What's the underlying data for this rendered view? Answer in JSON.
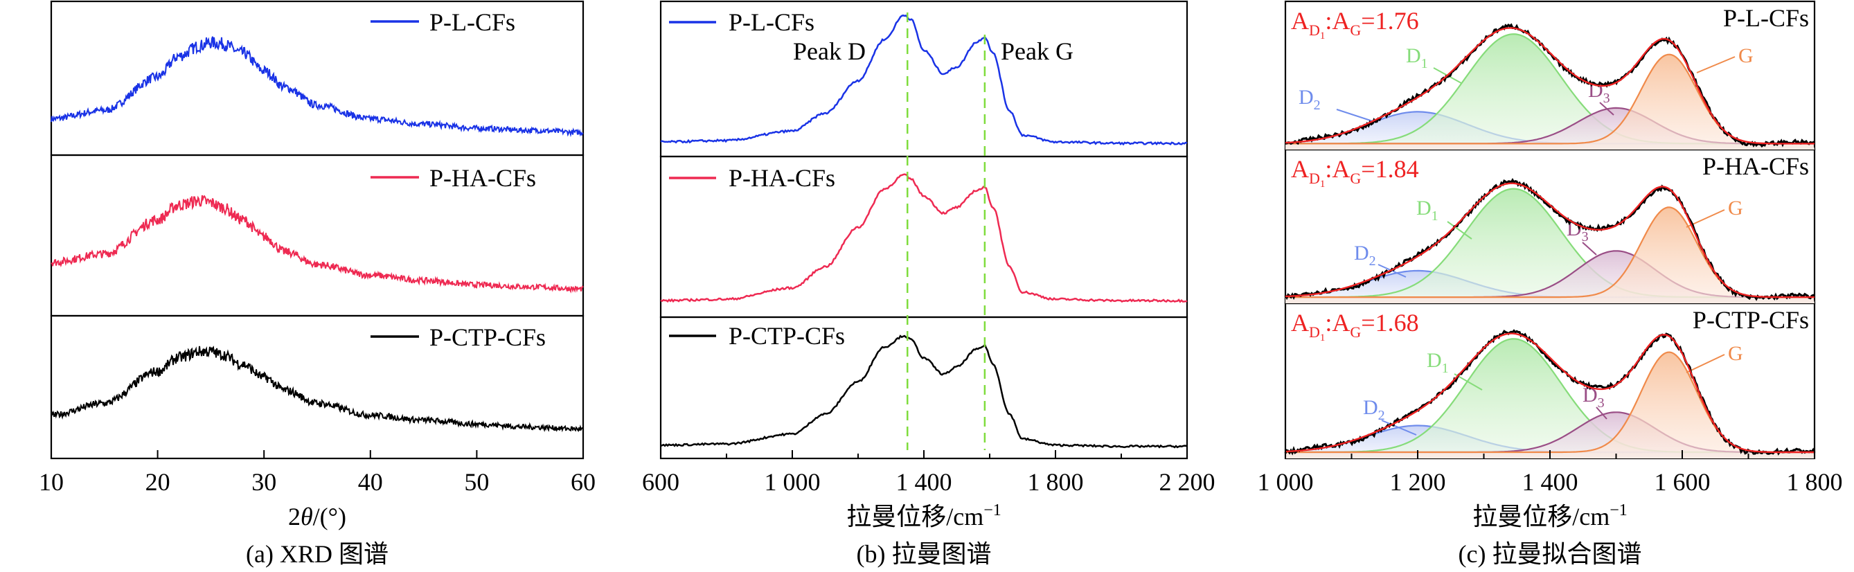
{
  "colors": {
    "blue": "#1a33e6",
    "red": "#ee2a52",
    "black": "#000000",
    "dash": "#7fdc3c",
    "fitRed": "#ee2222",
    "d1": "#86dc7a",
    "d2": "#6f8cec",
    "d3": "#9a4e86",
    "g": "#f08a4a"
  },
  "chart_data": [
    {
      "type": "line",
      "caption": "(a) XRD 图谱",
      "xlabel_prefix": "2",
      "xlabel_var": "θ",
      "xlabel_suffix": "/(°)",
      "xlim": [
        10,
        60
      ],
      "xticks": [
        "10",
        "20",
        "30",
        "40",
        "50",
        "60"
      ],
      "stacked": true,
      "series": [
        {
          "name": "P-L-CFs",
          "color_key": "blue",
          "x": [
            10,
            15,
            20,
            22,
            24,
            25,
            26,
            28,
            30,
            32,
            35,
            40,
            45,
            50,
            55,
            60
          ],
          "y": [
            0.2,
            0.28,
            0.6,
            0.8,
            0.9,
            0.93,
            0.92,
            0.83,
            0.66,
            0.5,
            0.33,
            0.2,
            0.15,
            0.11,
            0.09,
            0.07
          ]
        },
        {
          "name": "P-HA-CFs",
          "color_key": "red",
          "x": [
            10,
            15,
            20,
            22,
            24,
            25,
            26,
            28,
            30,
            32,
            35,
            40,
            45,
            50,
            55,
            60
          ],
          "y": [
            0.32,
            0.4,
            0.72,
            0.86,
            0.9,
            0.88,
            0.84,
            0.72,
            0.56,
            0.42,
            0.3,
            0.2,
            0.15,
            0.11,
            0.09,
            0.07
          ]
        },
        {
          "name": "P-CTP-CFs",
          "color_key": "black",
          "x": [
            10,
            15,
            20,
            22,
            24,
            25,
            26,
            28,
            30,
            32,
            35,
            40,
            45,
            50,
            55,
            60
          ],
          "y": [
            0.22,
            0.34,
            0.66,
            0.8,
            0.86,
            0.86,
            0.83,
            0.73,
            0.6,
            0.47,
            0.34,
            0.22,
            0.17,
            0.13,
            0.1,
            0.08
          ]
        }
      ]
    },
    {
      "type": "line",
      "caption": "(b) 拉曼图谱",
      "xlabel_text": "拉曼位移/cm",
      "xlabel_sup": "−1",
      "xlim": [
        600,
        2200
      ],
      "xticks": [
        {
          "v": 600,
          "label": "600"
        },
        {
          "v": 1000,
          "label": "1 000"
        },
        {
          "v": 1400,
          "label": "1 400"
        },
        {
          "v": 1800,
          "label": "1 800"
        },
        {
          "v": 2200,
          "label": "2 200"
        }
      ],
      "stacked": true,
      "reference_lines": [
        1350,
        1585
      ],
      "annotations": [
        "Peak D",
        "Peak G"
      ],
      "series": [
        {
          "name": "P-L-CFs",
          "color_key": "blue",
          "x": [
            600,
            800,
            1000,
            1100,
            1200,
            1280,
            1340,
            1360,
            1400,
            1460,
            1500,
            1560,
            1585,
            1610,
            1660,
            1700,
            1800,
            2000,
            2200
          ],
          "y": [
            0.05,
            0.06,
            0.13,
            0.26,
            0.5,
            0.8,
            0.98,
            0.95,
            0.72,
            0.55,
            0.6,
            0.78,
            0.82,
            0.7,
            0.28,
            0.1,
            0.05,
            0.04,
            0.04
          ]
        },
        {
          "name": "P-HA-CFs",
          "color_key": "red",
          "x": [
            600,
            800,
            1000,
            1100,
            1200,
            1280,
            1340,
            1360,
            1400,
            1460,
            1500,
            1560,
            1585,
            1610,
            1660,
            1700,
            1800,
            2000,
            2200
          ],
          "y": [
            0.06,
            0.07,
            0.15,
            0.3,
            0.58,
            0.85,
            0.95,
            0.92,
            0.8,
            0.68,
            0.72,
            0.84,
            0.86,
            0.72,
            0.3,
            0.12,
            0.07,
            0.06,
            0.06
          ]
        },
        {
          "name": "P-CTP-CFs",
          "color_key": "black",
          "x": [
            600,
            800,
            1000,
            1100,
            1200,
            1280,
            1340,
            1360,
            1400,
            1460,
            1500,
            1560,
            1585,
            1610,
            1660,
            1700,
            1800,
            2000,
            2200
          ],
          "y": [
            0.05,
            0.06,
            0.14,
            0.3,
            0.56,
            0.84,
            0.93,
            0.9,
            0.75,
            0.62,
            0.68,
            0.82,
            0.85,
            0.7,
            0.3,
            0.1,
            0.05,
            0.04,
            0.04
          ]
        }
      ]
    },
    {
      "type": "line",
      "caption": "(c) 拉曼拟合图谱",
      "xlabel_text": "拉曼位移/cm",
      "xlabel_sup": "−1",
      "xlim": [
        1000,
        1800
      ],
      "xticks": [
        {
          "v": 1000,
          "label": "1 000"
        },
        {
          "v": 1200,
          "label": "1 200"
        },
        {
          "v": 1400,
          "label": "1 400"
        },
        {
          "v": 1600,
          "label": "1 600"
        },
        {
          "v": 1800,
          "label": "1 800"
        }
      ],
      "panels": [
        {
          "name": "P-L-CFs",
          "ratio_label": ":A",
          "ratio_value": "=1.76",
          "bands": [
            {
              "label": "D",
              "sub": "2",
              "center": 1200,
              "amp": 0.25,
              "width": 75
            },
            {
              "label": "D",
              "sub": "1",
              "center": 1345,
              "amp": 0.86,
              "width": 72
            },
            {
              "label": "D",
              "sub": "3",
              "center": 1500,
              "amp": 0.28,
              "width": 58
            },
            {
              "label": "G",
              "sub": "",
              "center": 1580,
              "amp": 0.7,
              "width": 42
            }
          ]
        },
        {
          "name": "P-HA-CFs",
          "ratio_label": ":A",
          "ratio_value": "=1.84",
          "bands": [
            {
              "label": "D",
              "sub": "2",
              "center": 1200,
              "amp": 0.2,
              "width": 75
            },
            {
              "label": "D",
              "sub": "1",
              "center": 1345,
              "amp": 0.82,
              "width": 72
            },
            {
              "label": "D",
              "sub": "3",
              "center": 1500,
              "amp": 0.35,
              "width": 58
            },
            {
              "label": "G",
              "sub": "",
              "center": 1580,
              "amp": 0.68,
              "width": 42
            }
          ]
        },
        {
          "name": "P-CTP-CFs",
          "ratio_label": ":A",
          "ratio_value": "=1.68",
          "bands": [
            {
              "label": "D",
              "sub": "2",
              "center": 1200,
              "amp": 0.2,
              "width": 75
            },
            {
              "label": "D",
              "sub": "1",
              "center": 1345,
              "amp": 0.85,
              "width": 72
            },
            {
              "label": "D",
              "sub": "3",
              "center": 1500,
              "amp": 0.3,
              "width": 58
            },
            {
              "label": "G",
              "sub": "",
              "center": 1580,
              "amp": 0.75,
              "width": 42
            }
          ]
        }
      ]
    }
  ]
}
